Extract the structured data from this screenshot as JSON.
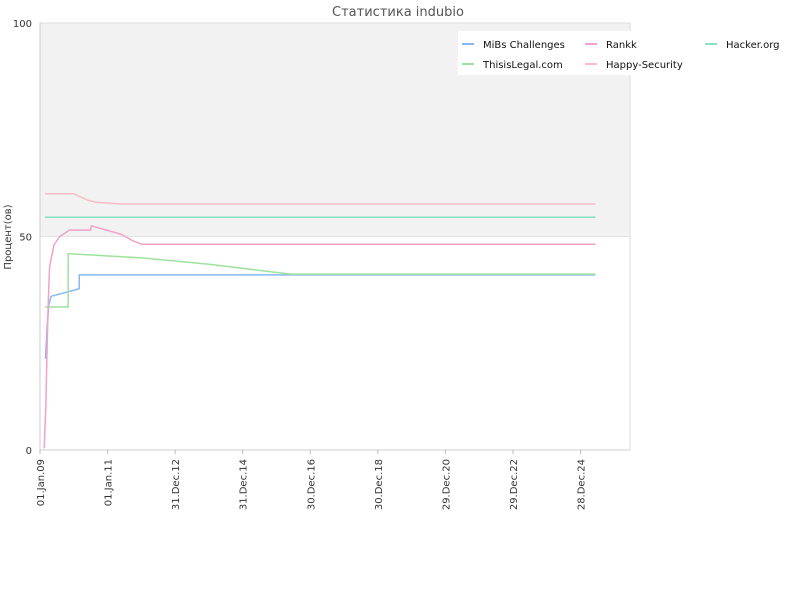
{
  "chart_data": {
    "type": "line",
    "title": "Статистика indubio",
    "xlabel": "",
    "ylabel": "Процент(ов)",
    "ylim": [
      0,
      100
    ],
    "yticks": [
      "0",
      "50",
      "100"
    ],
    "x_domain": [
      "2009-01-01",
      "2026-06-15"
    ],
    "xticks": [
      {
        "date": "2009-01-01",
        "label": "01.Jan.09"
      },
      {
        "date": "2011-01-01",
        "label": "01.Jan.11"
      },
      {
        "date": "2012-12-31",
        "label": "31.Dec.12"
      },
      {
        "date": "2014-12-31",
        "label": "31.Dec.14"
      },
      {
        "date": "2016-12-30",
        "label": "30.Dec.16"
      },
      {
        "date": "2018-12-30",
        "label": "30.Dec.18"
      },
      {
        "date": "2020-12-29",
        "label": "29.Dec.20"
      },
      {
        "date": "2022-12-29",
        "label": "29.Dec.22"
      },
      {
        "date": "2024-12-28",
        "label": "28.Dec.24"
      }
    ],
    "grid": false,
    "bands": [
      {
        "from": 50,
        "to": 100,
        "color": "#f2f2f2"
      }
    ],
    "legend_position": "top-right",
    "series": [
      {
        "name": "MiBs Challenges",
        "color": "#88b8f0",
        "points": [
          [
            "2009-03-01",
            21.5
          ],
          [
            "2009-03-20",
            29
          ],
          [
            "2009-04-05",
            34
          ],
          [
            "2009-05-01",
            36
          ],
          [
            "2010-01-15",
            37.5
          ],
          [
            "2010-03-01",
            37.8
          ],
          [
            "2010-03-02",
            41
          ],
          [
            "2011-06-01",
            41
          ],
          [
            "2025-06-01",
            41
          ]
        ]
      },
      {
        "name": "ThisisLegal.com",
        "color": "#9ee29e",
        "points": [
          [
            "2009-03-01",
            33.5
          ],
          [
            "2009-11-01",
            33.5
          ],
          [
            "2009-11-02",
            46
          ],
          [
            "2012-01-01",
            45
          ],
          [
            "2014-01-01",
            43.5
          ],
          [
            "2016-06-01",
            41.2
          ],
          [
            "2025-06-01",
            41.2
          ]
        ]
      },
      {
        "name": "Rankk",
        "color": "#f0a2c8",
        "points": [
          [
            "2009-02-15",
            0.5
          ],
          [
            "2009-03-05",
            10
          ],
          [
            "2009-03-20",
            25
          ],
          [
            "2009-04-01",
            35
          ],
          [
            "2009-04-15",
            43
          ],
          [
            "2009-06-01",
            48
          ],
          [
            "2009-08-01",
            50
          ],
          [
            "2009-11-15",
            51.5
          ],
          [
            "2010-07-01",
            51.5
          ],
          [
            "2010-07-10",
            52.5
          ],
          [
            "2011-06-01",
            50.5
          ],
          [
            "2011-10-01",
            49
          ],
          [
            "2012-01-01",
            48.2
          ],
          [
            "2025-06-01",
            48.2
          ]
        ]
      },
      {
        "name": "Happy-Security",
        "color": "#f7bcc6",
        "points": [
          [
            "2009-03-01",
            60
          ],
          [
            "2010-01-01",
            60
          ],
          [
            "2010-06-01",
            58.5
          ],
          [
            "2010-09-01",
            58
          ],
          [
            "2011-06-01",
            57.6
          ],
          [
            "2025-06-01",
            57.6
          ]
        ]
      },
      {
        "name": "Hacker.org",
        "color": "#86e0c2",
        "points": [
          [
            "2009-03-01",
            54.5
          ],
          [
            "2025-06-01",
            54.5
          ]
        ]
      }
    ]
  }
}
